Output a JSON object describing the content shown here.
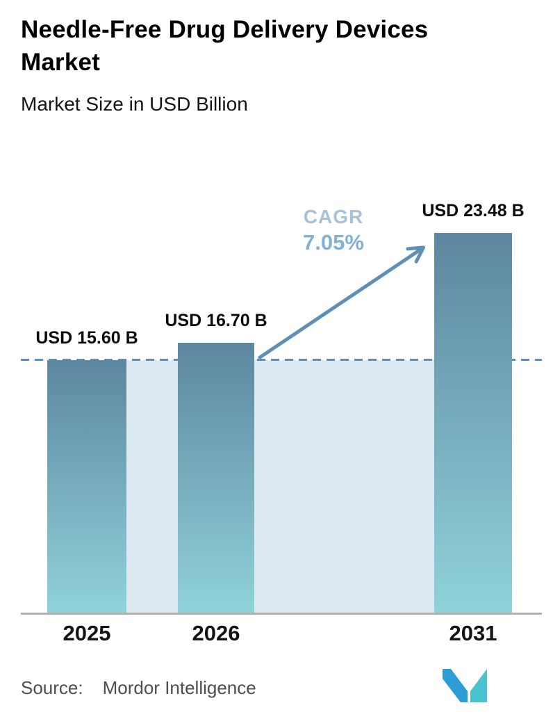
{
  "chart_data": {
    "type": "bar",
    "title": "Needle-Free Drug Delivery Devices Market",
    "subtitle": "Market Size in USD Billion",
    "unit": "USD Billion",
    "categories": [
      "2025",
      "2026",
      "2031"
    ],
    "values": [
      15.6,
      16.7,
      23.48
    ],
    "value_labels": [
      "USD 15.60 B",
      "USD 16.70 B",
      "USD 23.48 B"
    ],
    "annotations": {
      "cagr_label": "CAGR",
      "cagr_value": "7.05%"
    },
    "baseline_value": 15.6,
    "ylim": [
      0,
      25
    ],
    "grid": false,
    "legend": false,
    "colors": {
      "bar_top": "#5d87a0",
      "bar_bottom": "#90d2d9",
      "band": "#dce8f2",
      "line": "#5e8fb5",
      "cagr_label": "#a6c2da",
      "cagr_value": "#7fb2d4",
      "axis": "#b1b1b1",
      "text": "#0c0c0c",
      "source_text": "#4e4e4e",
      "logo_blue": "#2d9dd8",
      "logo_teal": "#49c3cf"
    }
  },
  "footer": {
    "source_label": "Source:",
    "source_value": "Mordor Intelligence",
    "logo_name": "mordor-intelligence-logo"
  }
}
